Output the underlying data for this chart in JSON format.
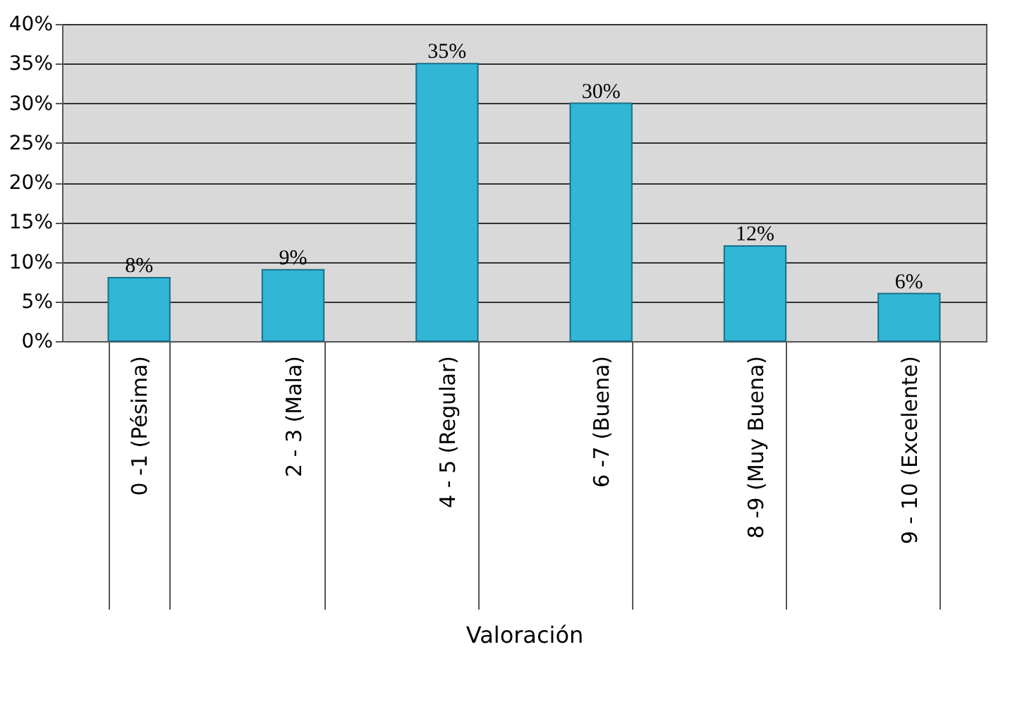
{
  "chart_data": {
    "type": "bar",
    "xlabel": "Valoración",
    "categories": [
      "0 -1 (Pésima)",
      "2 - 3 (Mala)",
      "4 - 5 (Regular)",
      "6 -7 (Buena)",
      "8 -9 (Muy Buena)",
      "9 - 10 (Excelente)"
    ],
    "values": [
      8,
      9,
      35,
      30,
      12,
      6
    ],
    "value_labels": [
      "8%",
      "9%",
      "35%",
      "30%",
      "12%",
      "6%"
    ],
    "color": "#31b6d6",
    "ylim": [
      0,
      40
    ],
    "yticks": [
      {
        "value": 0,
        "label": "0%"
      },
      {
        "value": 5,
        "label": "5%"
      },
      {
        "value": 10,
        "label": "10%"
      },
      {
        "value": 15,
        "label": "15%"
      },
      {
        "value": 20,
        "label": "20%"
      },
      {
        "value": 25,
        "label": "25%"
      },
      {
        "value": 30,
        "label": "30%"
      },
      {
        "value": 35,
        "label": "35%"
      },
      {
        "value": 40,
        "label": "40%"
      }
    ],
    "grid": "y"
  }
}
